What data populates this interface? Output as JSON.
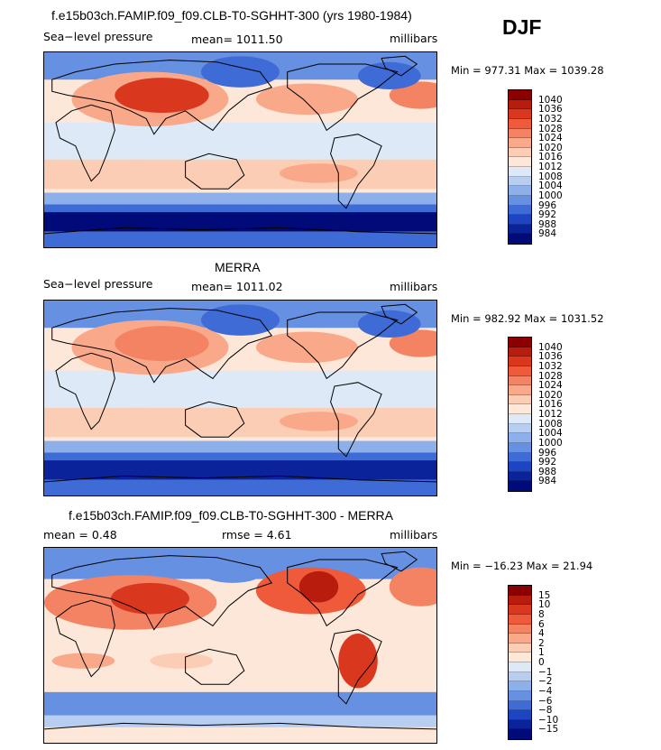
{
  "season": "DJF",
  "chart_data": [
    {
      "type": "heatmap",
      "title": "f.e15b03ch.FAMIP.f09_f09.CLB-T0-SGHHT-300 (yrs 1980-1984)",
      "left_label": "Sea−level pressure",
      "center_label": "mean= 1011.50",
      "units": "millibars",
      "min_max": "Min = 977.31 Max = 1039.28",
      "colorbar_levels": [
        "1040",
        "1036",
        "1032",
        "1028",
        "1024",
        "1020",
        "1016",
        "1012",
        "1008",
        "1004",
        "1000",
        "996",
        "992",
        "988",
        "984"
      ],
      "colorbar_colors": [
        "#8b0000",
        "#b71c0c",
        "#d9381e",
        "#ef5a3a",
        "#f48363",
        "#f9a98a",
        "#fccdb5",
        "#fde7d9",
        "#dde9f7",
        "#b7cef0",
        "#8db0ea",
        "#6690e1",
        "#3e6bd6",
        "#1d45c2",
        "#0a229a",
        "#000a78"
      ]
    },
    {
      "type": "heatmap",
      "title": "MERRA",
      "left_label": "Sea−level pressure",
      "center_label": "mean= 1011.02",
      "units": "millibars",
      "min_max": "Min = 982.92 Max = 1031.52",
      "colorbar_levels": [
        "1040",
        "1036",
        "1032",
        "1028",
        "1024",
        "1020",
        "1016",
        "1012",
        "1008",
        "1004",
        "1000",
        "996",
        "992",
        "988",
        "984"
      ],
      "colorbar_colors": [
        "#8b0000",
        "#b71c0c",
        "#d9381e",
        "#ef5a3a",
        "#f48363",
        "#f9a98a",
        "#fccdb5",
        "#fde7d9",
        "#dde9f7",
        "#b7cef0",
        "#8db0ea",
        "#6690e1",
        "#3e6bd6",
        "#1d45c2",
        "#0a229a",
        "#000a78"
      ]
    },
    {
      "type": "heatmap",
      "title": "f.e15b03ch.FAMIP.f09_f09.CLB-T0-SGHHT-300 - MERRA",
      "left_label": "mean =    0.48",
      "center_label": "rmse =    4.61",
      "units": "millibars",
      "min_max": "Min = −16.23 Max =  21.94",
      "colorbar_levels": [
        "15",
        "10",
        "8",
        "6",
        "4",
        "2",
        "1",
        "0",
        "−1",
        "−2",
        "−4",
        "−6",
        "−8",
        "−10",
        "−15"
      ],
      "colorbar_colors": [
        "#8b0000",
        "#b71c0c",
        "#d9381e",
        "#ef5a3a",
        "#f48363",
        "#f9a98a",
        "#fccdb5",
        "#fde7d9",
        "#dde9f7",
        "#b7cef0",
        "#8db0ea",
        "#6690e1",
        "#3e6bd6",
        "#1d45c2",
        "#0a229a",
        "#000a78"
      ]
    }
  ]
}
